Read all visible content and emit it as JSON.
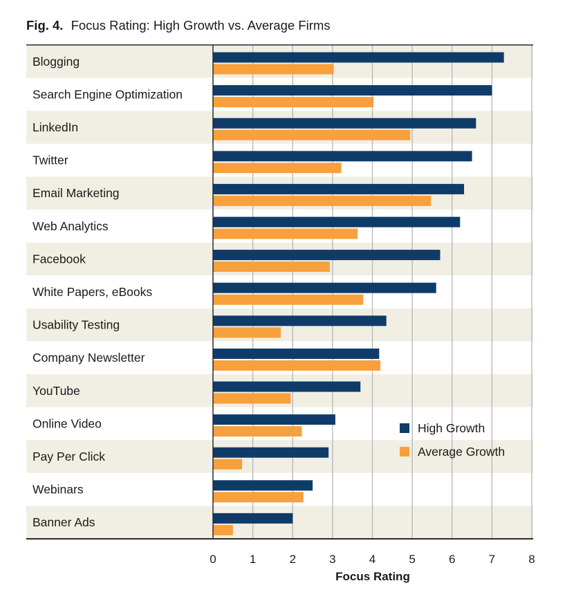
{
  "chart_data": {
    "type": "bar",
    "orientation": "horizontal",
    "title_prefix": "Fig. 4.",
    "title": "Focus Rating: High Growth vs. Average Firms",
    "xlabel": "Focus Rating",
    "ylabel": "",
    "xlim": [
      0,
      8
    ],
    "xticks": [
      "0",
      "1",
      "2",
      "3",
      "4",
      "5",
      "6",
      "7",
      "8"
    ],
    "grid": true,
    "legend_position": "bottom-right",
    "categories": [
      "Blogging",
      "Search Engine Optimization",
      "LinkedIn",
      "Twitter",
      "Email Marketing",
      "Web Analytics",
      "Facebook",
      "White Papers, eBooks",
      "Usability Testing",
      "Company Newsletter",
      "YouTube",
      "Online Video",
      "Pay Per Click",
      "Webinars",
      "Banner Ads"
    ],
    "series": [
      {
        "name": "High Growth",
        "color": "#0f3b68",
        "values": [
          7.3,
          7.0,
          6.6,
          6.5,
          6.3,
          6.2,
          5.7,
          5.6,
          4.35,
          4.17,
          3.7,
          3.07,
          2.9,
          2.5,
          2.0
        ]
      },
      {
        "name": "Average Growth",
        "color": "#f7a03c",
        "values": [
          3.03,
          4.03,
          4.95,
          3.22,
          5.47,
          3.63,
          2.93,
          3.77,
          1.7,
          4.2,
          1.95,
          2.23,
          0.73,
          2.27,
          0.5
        ]
      }
    ],
    "band_color": "#f1eee4",
    "grid_color": "#b5b5b5"
  }
}
